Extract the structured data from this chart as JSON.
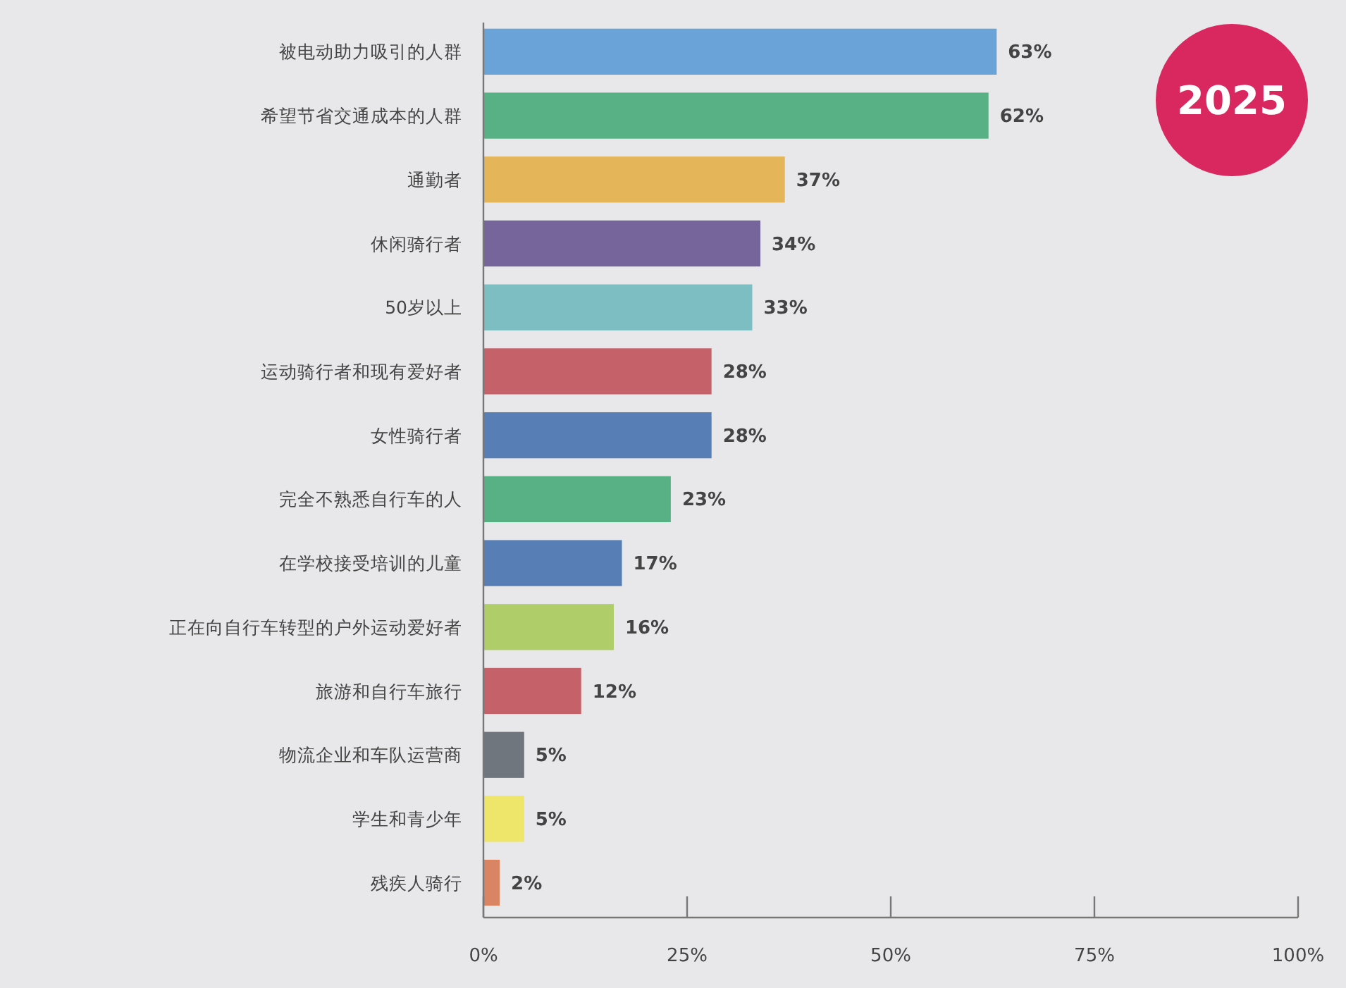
{
  "chart_data": {
    "type": "bar",
    "orientation": "horizontal",
    "categories": [
      "被电动助力吸引的人群",
      "希望节省交通成本的人群",
      "通勤者",
      "休闲骑行者",
      "50岁以上",
      "运动骑行者和现有爱好者",
      "女性骑行者",
      "完全不熟悉自行车的人",
      "在学校接受培训的儿童",
      "正在向自行车转型的户外运动爱好者",
      "旅游和自行车旅行",
      "物流企业和车队运营商",
      "学生和青少年",
      "残疾人骑行"
    ],
    "values": [
      63,
      62,
      37,
      34,
      33,
      28,
      28,
      23,
      17,
      16,
      12,
      5,
      5,
      2
    ],
    "value_labels": [
      "63%",
      "62%",
      "37%",
      "34%",
      "33%",
      "28%",
      "28%",
      "23%",
      "17%",
      "16%",
      "12%",
      "5%",
      "5%",
      "2%"
    ],
    "colors": [
      "#6aa3d8",
      "#58b184",
      "#e5b659",
      "#76659a",
      "#7dbec3",
      "#c56169",
      "#577fb6",
      "#58b184",
      "#577fb6",
      "#afcd69",
      "#c56169",
      "#6f767d",
      "#ede66a",
      "#d98463"
    ],
    "xlim": [
      0,
      100
    ],
    "xticks": [
      {
        "value": 0,
        "label": "0%"
      },
      {
        "value": 25,
        "label": "25%"
      },
      {
        "value": 50,
        "label": "50%"
      },
      {
        "value": 75,
        "label": "75%"
      },
      {
        "value": 100,
        "label": "100%"
      }
    ],
    "annotations": [
      "2025"
    ]
  }
}
